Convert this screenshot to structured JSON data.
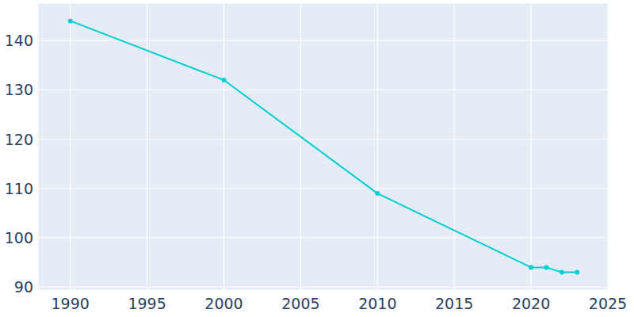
{
  "chart_data": {
    "type": "line",
    "x": [
      1990,
      2000,
      2010,
      2020,
      2021,
      2022,
      2023
    ],
    "values": [
      144,
      132,
      109,
      94,
      94,
      93,
      93
    ],
    "color": "#00ced1",
    "marker": "circle",
    "xlim": [
      1987.9,
      2025.05
    ],
    "xticks": [
      1990,
      1995,
      2000,
      2005,
      2010,
      2015,
      2020,
      2025
    ],
    "ylim": [
      89.4,
      147.6
    ],
    "yticks": [
      90,
      100,
      110,
      120,
      130,
      140
    ],
    "grid": true
  }
}
